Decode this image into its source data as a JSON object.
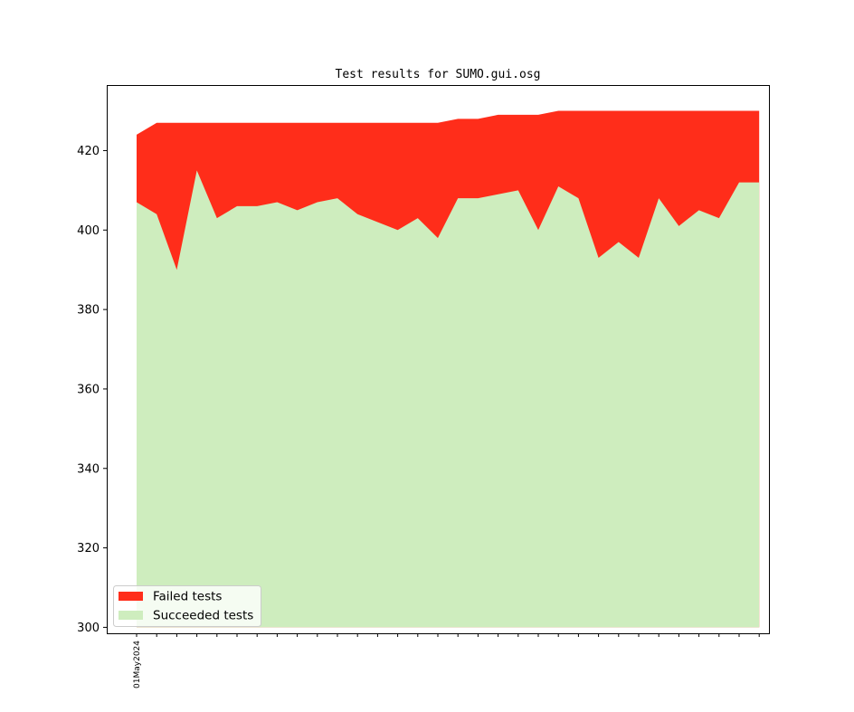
{
  "chart_data": {
    "type": "area",
    "title": "Test results for SUMO.gui.osg",
    "xlabel": "",
    "ylabel": "",
    "x_tick_labels": [
      "01May2024"
    ],
    "y_ticks": [
      300,
      320,
      340,
      360,
      380,
      400,
      420
    ],
    "ylim": [
      298.5,
      436.5
    ],
    "grid": false,
    "legend_position": "bottom-left",
    "series": [
      {
        "name": "Failed tests",
        "color": "#ff2d1a",
        "values": [
          424,
          427,
          427,
          427,
          427,
          427,
          427,
          427,
          427,
          427,
          427,
          427,
          427,
          427,
          427,
          427,
          428,
          428,
          429,
          429,
          429,
          430,
          430,
          430,
          430,
          430,
          430,
          430,
          430,
          430,
          430,
          430
        ]
      },
      {
        "name": "Succeeded tests",
        "color": "#ceedbe",
        "values": [
          407,
          404,
          390,
          415,
          403,
          406,
          406,
          407,
          405,
          407,
          408,
          404,
          402,
          400,
          403,
          398,
          408,
          408,
          409,
          410,
          400,
          411,
          408,
          393,
          397,
          393,
          408,
          401,
          405,
          403,
          412,
          412
        ]
      }
    ],
    "baseline": 300
  }
}
